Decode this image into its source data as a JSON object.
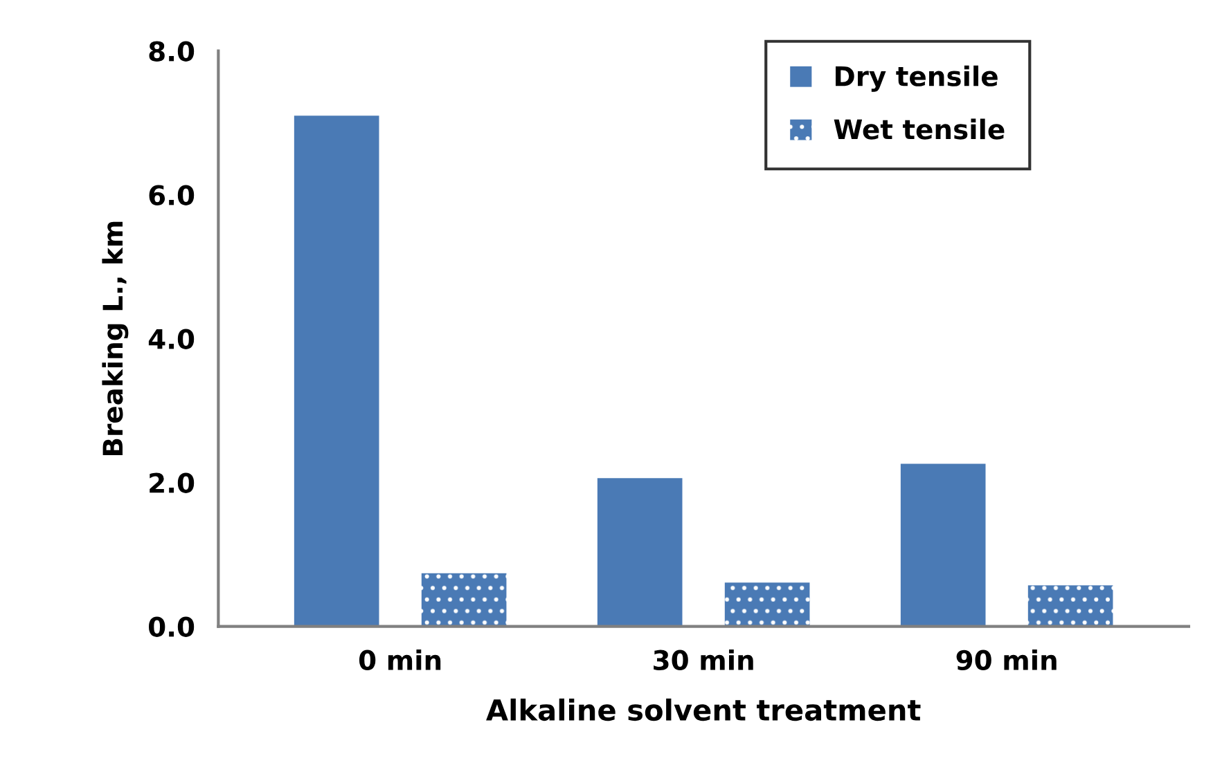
{
  "chart_data": {
    "type": "bar",
    "xlabel": "Alkaline solvent treatment",
    "ylabel": "Breaking L., km",
    "categories": [
      "0 min",
      "30 min",
      "90 min"
    ],
    "series": [
      {
        "name": "Dry tensile",
        "color": "#4a7ab5",
        "values": [
          7.1,
          2.06,
          2.26
        ]
      },
      {
        "name": "Wet tensile",
        "color": "#4a7ab5",
        "values": [
          0.74,
          0.61,
          0.57
        ]
      }
    ],
    "ylim": [
      0,
      8
    ],
    "yticks": [
      {
        "value": 0,
        "label": "0.0"
      },
      {
        "value": 2,
        "label": "2.0"
      },
      {
        "value": 4,
        "label": "4.0"
      },
      {
        "value": 6,
        "label": "6.0"
      },
      {
        "value": 8,
        "label": "8.0"
      }
    ],
    "grid": false,
    "legend": "top right"
  }
}
